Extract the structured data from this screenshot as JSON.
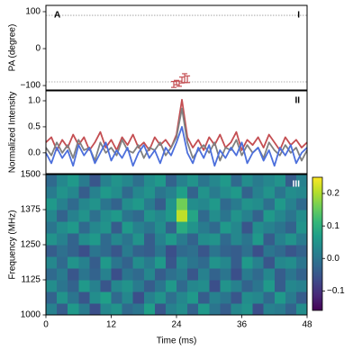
{
  "chart_data": [
    {
      "type": "errorbar",
      "panel_label": "A",
      "panel_number": "I",
      "ylabel": "PA (degree)",
      "xlim": [
        0,
        48
      ],
      "ylim": [
        -112,
        117
      ],
      "yticks": [
        100,
        0,
        {
          "value": -100,
          "label": "−100"
        }
      ],
      "hlines": [
        90,
        -90
      ],
      "hline_color": "#999999",
      "color": "#c44e52",
      "x": [
        23.5,
        24.0,
        24.5,
        25.0,
        25.5,
        26.0
      ],
      "values": [
        -97,
        -92,
        -95,
        -85,
        -80,
        -83
      ],
      "errors": [
        8,
        6,
        7,
        8,
        12,
        9
      ]
    },
    {
      "type": "line",
      "panel_number": "II",
      "ylabel": "Normalized Intensity",
      "xlim": [
        0,
        48
      ],
      "ylim": [
        -0.4,
        1.19
      ],
      "yticks": [
        {
          "value": 1,
          "label": "1.0"
        },
        0.5,
        {
          "value": 0,
          "label": "0.0"
        }
      ],
      "x": [
        0,
        1,
        2,
        3,
        4,
        5,
        6,
        7,
        8,
        9,
        10,
        11,
        12,
        13,
        14,
        15,
        16,
        17,
        18,
        19,
        20,
        21,
        22,
        23,
        24,
        25,
        26,
        27,
        28,
        29,
        30,
        31,
        32,
        33,
        34,
        35,
        36,
        37,
        38,
        39,
        40,
        41,
        42,
        43,
        44,
        45,
        46,
        47,
        48
      ],
      "series": [
        {
          "color": "#c44e52",
          "values": [
            0.2,
            0.3,
            0.05,
            0.25,
            0.1,
            0.35,
            0.15,
            0.3,
            0.05,
            0.2,
            0.4,
            0.1,
            0.25,
            0.05,
            0.3,
            0.15,
            0.35,
            0.1,
            0.2,
            0.05,
            0.3,
            0.15,
            0.25,
            0.1,
            0.35,
            1.02,
            0.3,
            0.1,
            0.25,
            0.05,
            0.3,
            0.15,
            0.35,
            0.1,
            0.2,
            0.4,
            0.05,
            0.25,
            0.15,
            0.3,
            0.1,
            0.35,
            0.2,
            0.05,
            0.3,
            0.15,
            0.25,
            0.1,
            0.2
          ]
        },
        {
          "color": "#808080",
          "values": [
            0.1,
            -0.05,
            0.2,
            0.0,
            0.15,
            -0.1,
            0.25,
            0.05,
            0.1,
            -0.15,
            0.2,
            0.0,
            0.1,
            -0.05,
            0.25,
            0.05,
            0.0,
            0.15,
            -0.1,
            0.1,
            0.05,
            0.2,
            -0.05,
            0.1,
            0.3,
            0.85,
            0.2,
            -0.1,
            0.05,
            0.15,
            0.0,
            0.2,
            -0.15,
            0.1,
            0.05,
            0.25,
            -0.05,
            0.15,
            0.0,
            0.1,
            -0.1,
            0.2,
            0.05,
            -0.05,
            0.15,
            0.0,
            0.1,
            -0.15,
            0.05
          ]
        },
        {
          "color": "#4c6fdc",
          "values": [
            0.0,
            -0.2,
            0.1,
            -0.1,
            0.05,
            -0.25,
            0.15,
            -0.05,
            0.1,
            -0.2,
            0.0,
            0.2,
            -0.15,
            0.05,
            -0.1,
            0.1,
            -0.25,
            0.0,
            0.15,
            -0.1,
            0.05,
            -0.2,
            0.1,
            -0.05,
            0.2,
            0.5,
            0.0,
            -0.2,
            0.1,
            -0.1,
            0.15,
            -0.25,
            0.05,
            -0.1,
            0.1,
            -0.05,
            0.2,
            -0.2,
            0.0,
            0.1,
            -0.15,
            0.05,
            -0.25,
            0.1,
            -0.05,
            0.15,
            -0.2,
            0.0,
            0.1
          ]
        }
      ]
    },
    {
      "type": "heatmap",
      "panel_number": "III",
      "ylabel": "Frequency (MHz)",
      "xlabel": "Time (ms)",
      "xlim": [
        0,
        48
      ],
      "xticks": [
        0,
        12,
        24,
        36,
        48
      ],
      "ylim": [
        1000,
        1500
      ],
      "yticks": [
        1000,
        1125,
        1250,
        1375,
        1500
      ],
      "colormap": "viridis",
      "colorbar": {
        "lim": [
          -0.16,
          0.25
        ],
        "ticks": [
          {
            "value": -0.1,
            "label": "−0.1"
          },
          {
            "value": 0,
            "label": "0.0"
          },
          0.1,
          0.2
        ]
      },
      "z": [
        [
          0.02,
          -0.04,
          0.06,
          0.01,
          -0.06,
          0.03,
          0.05,
          -0.02,
          0.0,
          0.07,
          -0.05,
          0.02,
          0.04,
          -0.03,
          0.06,
          0.0,
          -0.04,
          0.03,
          0.05,
          -0.06,
          0.02,
          0.01,
          -0.03,
          0.04
        ],
        [
          -0.03,
          0.05,
          0.0,
          -0.05,
          0.04,
          0.07,
          -0.02,
          0.03,
          -0.06,
          0.02,
          0.05,
          -0.01,
          0.03,
          0.06,
          -0.04,
          0.02,
          0.0,
          -0.05,
          0.04,
          0.03,
          -0.02,
          0.06,
          0.01,
          -0.04
        ],
        [
          0.04,
          0.0,
          -0.03,
          0.06,
          0.02,
          -0.05,
          0.03,
          0.05,
          0.01,
          -0.04,
          0.0,
          0.06,
          -0.02,
          0.03,
          0.04,
          -0.06,
          0.05,
          0.02,
          -0.03,
          0.0,
          0.06,
          -0.04,
          0.03,
          0.02
        ],
        [
          -0.02,
          0.01,
          -0.05,
          0.0,
          -0.03,
          0.02,
          -0.06,
          0.0,
          -0.02,
          0.03,
          -0.04,
          -0.01,
          0.01,
          -0.05,
          0.02,
          -0.03,
          0.0,
          -0.06,
          0.01,
          -0.02,
          0.03,
          -0.04,
          0.0,
          -0.03
        ],
        [
          0.03,
          -0.02,
          0.05,
          0.02,
          -0.04,
          0.06,
          0.0,
          -0.03,
          0.04,
          0.01,
          0.06,
          -0.05,
          0.03,
          0.0,
          -0.02,
          0.05,
          0.03,
          -0.04,
          0.06,
          0.02,
          -0.05,
          0.03,
          0.04,
          0.0
        ],
        [
          -0.04,
          -0.01,
          -0.03,
          -0.06,
          0.0,
          -0.02,
          -0.05,
          0.01,
          -0.03,
          -0.04,
          0.0,
          -0.06,
          -0.02,
          -0.01,
          -0.05,
          0.0,
          -0.03,
          -0.04,
          -0.01,
          -0.06,
          0.0,
          -0.02,
          -0.05,
          -0.03
        ],
        [
          0.05,
          0.02,
          -0.03,
          0.04,
          0.06,
          -0.02,
          0.03,
          0.0,
          0.05,
          -0.04,
          0.02,
          0.06,
          0.01,
          -0.03,
          0.04,
          0.05,
          -0.02,
          0.03,
          0.0,
          0.06,
          -0.04,
          0.02,
          0.05,
          0.01
        ],
        [
          0.0,
          0.04,
          0.06,
          -0.02,
          0.03,
          0.05,
          -0.04,
          0.06,
          0.02,
          0.0,
          0.04,
          -0.03,
          0.09,
          0.05,
          0.01,
          -0.02,
          0.06,
          0.03,
          -0.05,
          0.04,
          0.02,
          0.0,
          -0.03,
          0.05
        ],
        [
          0.03,
          -0.03,
          0.02,
          0.05,
          -0.01,
          0.04,
          0.06,
          0.0,
          -0.02,
          0.05,
          0.03,
          0.06,
          0.21,
          0.08,
          -0.02,
          0.04,
          0.0,
          0.05,
          0.02,
          -0.03,
          0.06,
          0.03,
          0.0,
          0.04
        ],
        [
          0.06,
          0.02,
          -0.02,
          0.03,
          0.05,
          0.0,
          -0.03,
          0.04,
          0.06,
          0.01,
          -0.04,
          0.05,
          0.16,
          0.04,
          0.03,
          0.06,
          -0.02,
          0.01,
          0.05,
          0.04,
          -0.01,
          0.06,
          0.02,
          -0.02
        ],
        [
          0.01,
          0.05,
          0.03,
          -0.04,
          0.02,
          0.06,
          0.04,
          -0.02,
          0.03,
          0.05,
          0.0,
          0.02,
          0.07,
          -0.03,
          0.05,
          0.01,
          0.04,
          0.06,
          -0.03,
          0.02,
          0.05,
          0.0,
          0.04,
          0.03
        ],
        [
          -0.02,
          0.03,
          0.06,
          0.01,
          -0.05,
          0.02,
          0.05,
          0.03,
          -0.01,
          0.04,
          0.06,
          -0.03,
          0.02,
          0.05,
          0.0,
          0.03,
          0.06,
          -0.02,
          0.04,
          0.01,
          0.03,
          0.05,
          -0.04,
          0.02
        ]
      ]
    }
  ]
}
